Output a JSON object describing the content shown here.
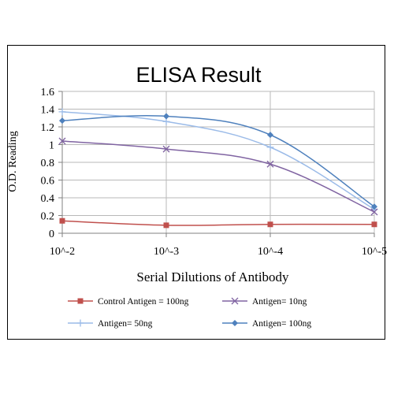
{
  "chart_data": {
    "type": "line",
    "title": "ELISA Result",
    "xlabel": "Serial Dilutions  of Antibody",
    "ylabel": "O.D. Reading",
    "categories": [
      "10^-2",
      "10^-3",
      "10^-4",
      "10^-5"
    ],
    "yticks": [
      "0",
      "0.2",
      "0.4",
      "0.6",
      "0.8",
      "1",
      "1.2",
      "1.4",
      "1.6"
    ],
    "ylim": [
      0,
      1.6
    ],
    "grid": true,
    "legend_position": "bottom",
    "series": [
      {
        "name": "Control Antigen = 100ng",
        "values": [
          0.14,
          0.09,
          0.1,
          0.1
        ],
        "color": "#c0504d",
        "marker": "square"
      },
      {
        "name": "Antigen= 10ng",
        "values": [
          1.04,
          0.95,
          0.78,
          0.24
        ],
        "color": "#8064a2",
        "marker": "x"
      },
      {
        "name": "Antigen= 50ng",
        "values": [
          1.37,
          1.26,
          0.97,
          0.27
        ],
        "color": "#9bbbe8",
        "marker": "plus"
      },
      {
        "name": "Antigen= 100ng",
        "values": [
          1.27,
          1.32,
          1.11,
          0.3
        ],
        "color": "#4f81bd",
        "marker": "diamond"
      }
    ]
  }
}
